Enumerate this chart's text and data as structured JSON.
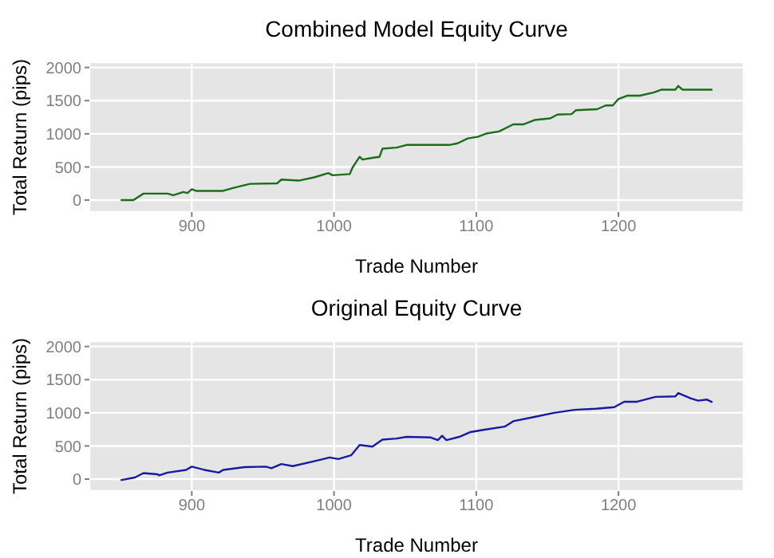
{
  "chart_data": [
    {
      "type": "line",
      "title": "Combined Model Equity Curve",
      "xlabel": "Trade Number",
      "ylabel": "Total Return (pips)",
      "xlim": [
        828,
        1288
      ],
      "xticks": [
        900,
        1000,
        1100,
        1200
      ],
      "ylim": [
        -180,
        2080
      ],
      "yticks": [
        0,
        500,
        1000,
        1500,
        2000
      ],
      "grid": true,
      "marker": "none",
      "line_style": "solid",
      "series": [
        {
          "color": "#1a6e1a",
          "x": [
            850,
            859,
            866,
            883,
            887,
            894,
            897,
            900,
            903,
            922,
            930,
            941,
            960,
            963,
            975,
            986,
            996,
            999,
            1011,
            1013,
            1018,
            1020,
            1027,
            1032,
            1034,
            1044,
            1051,
            1081,
            1087,
            1094,
            1101,
            1107,
            1116,
            1126,
            1133,
            1141,
            1152,
            1157,
            1167,
            1170,
            1185,
            1191,
            1196,
            1200,
            1206,
            1215,
            1225,
            1230,
            1240,
            1242,
            1245,
            1266
          ],
          "values": [
            0,
            0,
            98,
            98,
            73,
            122,
            106,
            163,
            139,
            139,
            188,
            245,
            253,
            310,
            294,
            343,
            408,
            375,
            392,
            490,
            653,
            612,
            637,
            653,
            775,
            792,
            832,
            832,
            857,
            930,
            955,
            1004,
            1036,
            1142,
            1142,
            1208,
            1232,
            1289,
            1297,
            1355,
            1371,
            1428,
            1428,
            1526,
            1575,
            1575,
            1624,
            1665,
            1665,
            1722,
            1665,
            1665
          ]
        }
      ]
    },
    {
      "type": "line",
      "title": "Original Equity Curve",
      "xlabel": "Trade Number",
      "ylabel": "Total Return (pips)",
      "xlim": [
        828,
        1288
      ],
      "xticks": [
        900,
        1000,
        1100,
        1200
      ],
      "ylim": [
        -180,
        2080
      ],
      "yticks": [
        0,
        500,
        1000,
        1500,
        2000
      ],
      "grid": true,
      "marker": "none",
      "line_style": "solid",
      "series": [
        {
          "color": "#1a1aa0",
          "x": [
            850,
            860,
            866,
            876,
            877,
            883,
            896,
            900,
            909,
            919,
            922,
            937,
            952,
            956,
            963,
            971,
            986,
            997,
            1003,
            1012,
            1018,
            1027,
            1034,
            1044,
            1051,
            1068,
            1073,
            1076,
            1079,
            1088,
            1096,
            1105,
            1120,
            1126,
            1141,
            1154,
            1169,
            1184,
            1197,
            1204,
            1213,
            1226,
            1240,
            1242,
            1251,
            1256,
            1262,
            1266
          ],
          "values": [
            -16,
            24,
            90,
            73,
            57,
            98,
            139,
            188,
            139,
            98,
            139,
            180,
            188,
            163,
            228,
            196,
            269,
            326,
            302,
            359,
            514,
            490,
            596,
            612,
            637,
            628,
            588,
            653,
            588,
            637,
            710,
            743,
            792,
            873,
            938,
            996,
            1045,
            1061,
            1085,
            1167,
            1167,
            1240,
            1248,
            1297,
            1216,
            1183,
            1200,
            1159
          ]
        }
      ]
    }
  ]
}
